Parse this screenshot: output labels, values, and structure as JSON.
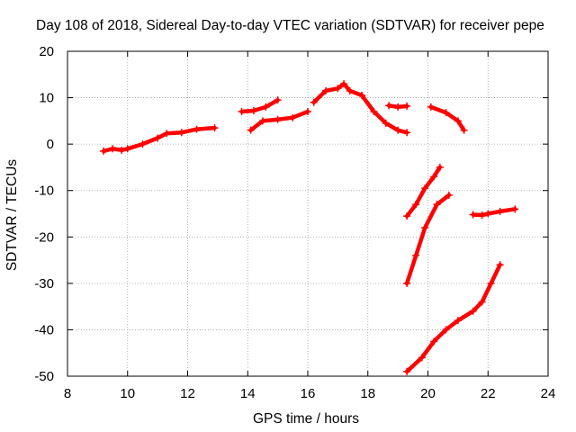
{
  "chart_data": {
    "type": "scatter",
    "title": "Day 108 of 2018, Sidereal Day-to-day VTEC variation (SDTVAR) for receiver pepe",
    "xlabel": "GPS time / hours",
    "ylabel": "SDTVAR / TECUs",
    "xlim": [
      8,
      24
    ],
    "ylim": [
      -50,
      20
    ],
    "xticks": [
      8,
      10,
      12,
      14,
      16,
      18,
      20,
      22,
      24
    ],
    "yticks": [
      -50,
      -40,
      -30,
      -20,
      -10,
      0,
      10,
      20
    ],
    "grid": true,
    "marker": "+",
    "color": "#ff0000",
    "series": [
      {
        "x": [
          9.2,
          9.5,
          9.8,
          10.0,
          10.5,
          11.0,
          11.3,
          11.8,
          12.3,
          12.9
        ],
        "y": [
          -1.5,
          -1.0,
          -1.3,
          -1.0,
          0.0,
          1.3,
          2.3,
          2.5,
          3.2,
          3.5
        ]
      },
      {
        "x": [
          13.8,
          14.2,
          14.6,
          15.0
        ],
        "y": [
          7.0,
          7.2,
          8.0,
          9.5
        ]
      },
      {
        "x": [
          14.1,
          14.5,
          15.0,
          15.5,
          16.0
        ],
        "y": [
          3.0,
          5.0,
          5.3,
          5.7,
          7.0
        ]
      },
      {
        "x": [
          16.2,
          16.6,
          17.0,
          17.2,
          17.4,
          17.8,
          18.2,
          18.6,
          19.0,
          19.3
        ],
        "y": [
          9.0,
          11.5,
          12.0,
          13.0,
          11.5,
          10.5,
          7.0,
          4.5,
          3.0,
          2.5
        ]
      },
      {
        "x": [
          18.7,
          19.0,
          19.3
        ],
        "y": [
          8.3,
          8.0,
          8.2
        ]
      },
      {
        "x": [
          20.1,
          20.6,
          21.0,
          21.2
        ],
        "y": [
          8.0,
          6.8,
          5.0,
          3.0
        ]
      },
      {
        "x": [
          19.3,
          19.6,
          19.9,
          20.2,
          20.4
        ],
        "y": [
          -15.5,
          -13.0,
          -9.5,
          -7.0,
          -5.0
        ]
      },
      {
        "x": [
          19.3,
          19.6,
          19.9,
          20.3,
          20.7
        ],
        "y": [
          -30.0,
          -24.0,
          -18.0,
          -13.0,
          -11.0
        ]
      },
      {
        "x": [
          21.5,
          21.8,
          22.0,
          22.4,
          22.9
        ],
        "y": [
          -15.2,
          -15.3,
          -15.0,
          -14.5,
          -14.0
        ]
      },
      {
        "x": [
          19.3,
          19.8,
          20.2,
          20.6,
          21.0,
          21.5,
          21.8,
          22.1,
          22.4
        ],
        "y": [
          -49.0,
          -46.0,
          -42.5,
          -40.0,
          -38.0,
          -36.0,
          -34.0,
          -30.0,
          -26.0
        ]
      }
    ]
  }
}
